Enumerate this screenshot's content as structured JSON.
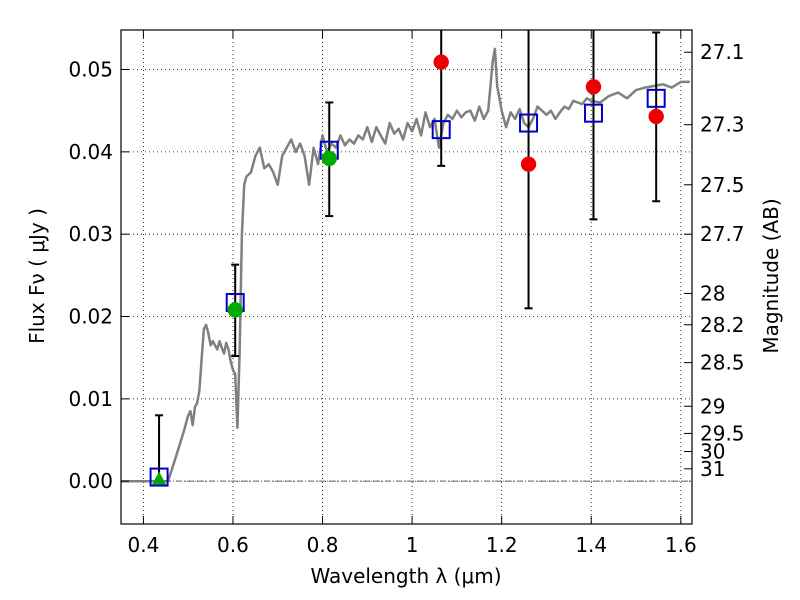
{
  "chart_data": {
    "type": "scatter",
    "xlabel": "Wavelength  λ (μm)",
    "ylabel": "Flux  Fν  ( μJy )",
    "ylabel_right": "Magnitude (AB)",
    "xlim": [
      0.35,
      1.625
    ],
    "ylim": [
      -0.0052,
      0.0548
    ],
    "grid": true,
    "x_ticks": [
      0.4,
      0.6,
      0.8,
      1.0,
      1.2,
      1.4,
      1.6
    ],
    "x_tick_labels": [
      "0.4",
      "0.6",
      "0.8",
      "1",
      "1.2",
      "1.4",
      "1.6"
    ],
    "y_ticks": [
      0.0,
      0.01,
      0.02,
      0.03,
      0.04,
      0.05
    ],
    "y_tick_labels": [
      "0.00",
      "0.01",
      "0.02",
      "0.03",
      "0.04",
      "0.05"
    ],
    "right_ticks": [
      {
        "label": "27.1",
        "flux": 0.0521
      },
      {
        "label": "27.3",
        "flux": 0.0433
      },
      {
        "label": "27.5",
        "flux": 0.036
      },
      {
        "label": "27.7",
        "flux": 0.03
      },
      {
        "label": "28",
        "flux": 0.0228
      },
      {
        "label": "28.2",
        "flux": 0.019
      },
      {
        "label": "28.5",
        "flux": 0.0144
      },
      {
        "label": "29",
        "flux": 0.0091
      },
      {
        "label": "29.5",
        "flux": 0.0058
      },
      {
        "label": "30",
        "flux": 0.0036
      },
      {
        "label": "31",
        "flux": 0.0015
      }
    ],
    "colors": {
      "spectrum": "#808080",
      "model_square": "#0000cc",
      "detection": "#00aa00",
      "measurement_red": "#ee0000",
      "errorbar": "#000000",
      "zero_line": "#666666"
    },
    "series": [
      {
        "kind": "line",
        "x": [
          0.35,
          0.44,
          0.455,
          0.47,
          0.49,
          0.5,
          0.505,
          0.51,
          0.515,
          0.52,
          0.525,
          0.53,
          0.535,
          0.54,
          0.545,
          0.55,
          0.555,
          0.56,
          0.565,
          0.57,
          0.575,
          0.58,
          0.585,
          0.59,
          0.595,
          0.6,
          0.605,
          0.61,
          0.615,
          0.62,
          0.625,
          0.63,
          0.64,
          0.65,
          0.66,
          0.67,
          0.68,
          0.69,
          0.7,
          0.71,
          0.72,
          0.73,
          0.74,
          0.75,
          0.76,
          0.77,
          0.78,
          0.79,
          0.8,
          0.81,
          0.82,
          0.83,
          0.84,
          0.85,
          0.86,
          0.87,
          0.88,
          0.89,
          0.9,
          0.91,
          0.92,
          0.93,
          0.94,
          0.95,
          0.96,
          0.97,
          0.98,
          0.99,
          1.0,
          1.01,
          1.02,
          1.03,
          1.04,
          1.05,
          1.06,
          1.07,
          1.08,
          1.09,
          1.1,
          1.11,
          1.12,
          1.13,
          1.14,
          1.15,
          1.16,
          1.17,
          1.18,
          1.185,
          1.19,
          1.2,
          1.21,
          1.22,
          1.23,
          1.24,
          1.25,
          1.26,
          1.27,
          1.28,
          1.29,
          1.3,
          1.31,
          1.32,
          1.33,
          1.34,
          1.35,
          1.36,
          1.37,
          1.38,
          1.39,
          1.4,
          1.42,
          1.44,
          1.46,
          1.48,
          1.5,
          1.52,
          1.54,
          1.56,
          1.58,
          1.6,
          1.62
        ],
        "y": [
          0.0,
          0.0,
          0.0,
          0.0025,
          0.006,
          0.008,
          0.0085,
          0.0068,
          0.009,
          0.0095,
          0.011,
          0.0148,
          0.0185,
          0.019,
          0.018,
          0.0165,
          0.017,
          0.0165,
          0.016,
          0.017,
          0.0162,
          0.0155,
          0.0168,
          0.016,
          0.0145,
          0.0135,
          0.013,
          0.0065,
          0.016,
          0.03,
          0.036,
          0.037,
          0.0375,
          0.0395,
          0.0405,
          0.038,
          0.0385,
          0.0375,
          0.036,
          0.0395,
          0.0405,
          0.0415,
          0.04,
          0.041,
          0.0395,
          0.036,
          0.0405,
          0.0385,
          0.042,
          0.04,
          0.041,
          0.0405,
          0.042,
          0.0408,
          0.0415,
          0.041,
          0.042,
          0.0415,
          0.043,
          0.0412,
          0.043,
          0.042,
          0.041,
          0.0435,
          0.0422,
          0.0428,
          0.0415,
          0.0435,
          0.0425,
          0.044,
          0.042,
          0.0448,
          0.043,
          0.044,
          0.0405,
          0.0435,
          0.0445,
          0.044,
          0.045,
          0.0442,
          0.0448,
          0.045,
          0.0438,
          0.0455,
          0.044,
          0.045,
          0.051,
          0.0525,
          0.048,
          0.045,
          0.043,
          0.0448,
          0.044,
          0.0452,
          0.0435,
          0.043,
          0.044,
          0.0455,
          0.045,
          0.0445,
          0.045,
          0.044,
          0.0448,
          0.0455,
          0.0452,
          0.0462,
          0.046,
          0.0458,
          0.0465,
          0.0462,
          0.046,
          0.0468,
          0.0472,
          0.0465,
          0.0475,
          0.0478,
          0.048,
          0.0482,
          0.0478,
          0.0485,
          0.0485
        ]
      },
      {
        "kind": "errorbar",
        "x": [
          0.435,
          0.605,
          0.815,
          1.065,
          1.26,
          1.405,
          1.545
        ],
        "ylow": [
          0.0,
          0.0152,
          0.0322,
          0.0383,
          0.021,
          0.0318,
          0.034
        ],
        "yhigh": [
          0.008,
          0.0263,
          0.046,
          0.056,
          0.056,
          0.056,
          0.0545
        ]
      },
      {
        "kind": "open-square",
        "x": [
          0.435,
          0.605,
          0.815,
          1.065,
          1.26,
          1.405,
          1.545
        ],
        "y": [
          0.0005,
          0.0217,
          0.0402,
          0.0427,
          0.0435,
          0.0447,
          0.0465
        ]
      },
      {
        "kind": "circle",
        "color_key": "detection",
        "x": [
          0.605,
          0.815
        ],
        "y": [
          0.0208,
          0.0392
        ]
      },
      {
        "kind": "triangle",
        "color_key": "detection",
        "x": [
          0.435
        ],
        "y": [
          0.0002
        ]
      },
      {
        "kind": "circle",
        "color_key": "measurement_red",
        "x": [
          1.065,
          1.26,
          1.405,
          1.545
        ],
        "y": [
          0.0509,
          0.0385,
          0.0479,
          0.0443
        ]
      }
    ]
  }
}
